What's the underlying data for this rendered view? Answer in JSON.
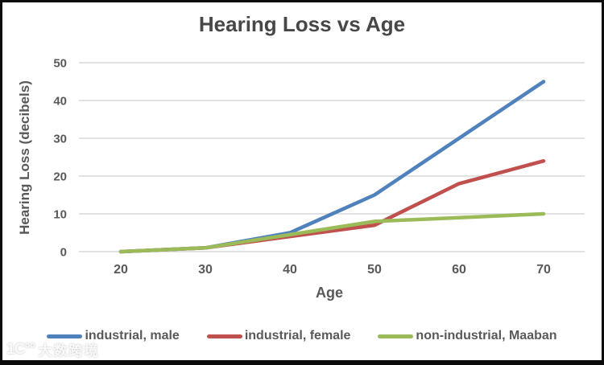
{
  "chart_data": {
    "type": "line",
    "title": "Hearing Loss vs Age",
    "xlabel": "Age",
    "ylabel": "Hearing Loss (decibels)",
    "categories": [
      20,
      30,
      40,
      50,
      60,
      70
    ],
    "y_ticks": [
      0,
      10,
      20,
      30,
      40,
      50
    ],
    "ylim": [
      0,
      50
    ],
    "grid": true,
    "legend_position": "bottom",
    "series": [
      {
        "name": "industrial, male",
        "color": "#4F81BD",
        "values": [
          0,
          1,
          5,
          15,
          30,
          45
        ]
      },
      {
        "name": "industrial, female",
        "color": "#C0504D",
        "values": [
          0,
          1,
          4,
          7,
          18,
          24
        ]
      },
      {
        "name": "non-industrial, Maaban",
        "color": "#9BBB59",
        "values": [
          0,
          1,
          4.5,
          8,
          9,
          10
        ]
      }
    ]
  },
  "colors": {
    "grid": "#D9D9D9",
    "axis_text": "#595959",
    "title_text": "#474747"
  },
  "watermark": {
    "logo": "1C°°",
    "text": "大数跨境"
  }
}
